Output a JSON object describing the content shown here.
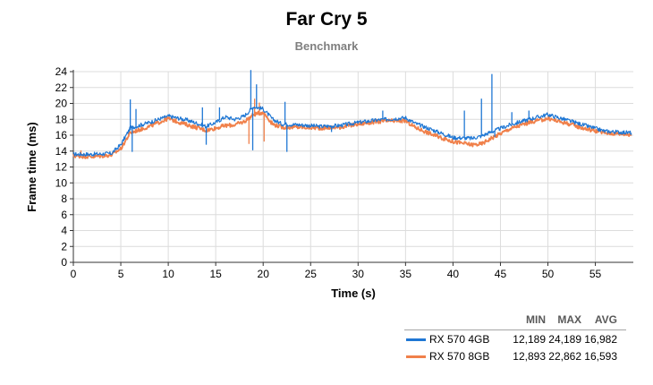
{
  "title": "Far Cry 5",
  "subtitle": "Benchmark",
  "chart_data": {
    "type": "line",
    "title": "Far Cry 5",
    "subtitle": "Benchmark",
    "xlabel": "Time (s)",
    "ylabel": "Frame time (ms)",
    "xlim": [
      0,
      59
    ],
    "ylim": [
      0,
      24
    ],
    "xticks": [
      0,
      5,
      10,
      15,
      20,
      25,
      30,
      35,
      40,
      45,
      50,
      55
    ],
    "yticks": [
      0,
      2,
      4,
      6,
      8,
      10,
      12,
      14,
      16,
      18,
      20,
      22,
      24
    ],
    "grid": true,
    "series": [
      {
        "name": "RX 570 4GB",
        "color": "#1f77d4",
        "x": [
          0,
          2,
          4,
          5,
          6,
          8,
          10,
          12,
          14,
          15,
          16,
          17,
          18,
          19,
          20,
          21,
          22,
          24,
          26,
          28,
          30,
          32,
          34,
          35,
          36,
          38,
          40,
          42,
          43,
          44,
          46,
          48,
          50,
          52,
          54,
          56,
          58.8
        ],
        "y": [
          13.6,
          13.6,
          13.7,
          14.8,
          16.9,
          17.6,
          18.4,
          17.9,
          17.1,
          17.6,
          18.3,
          18.0,
          18.4,
          19.6,
          19.3,
          18.0,
          17.4,
          17.3,
          17.1,
          17.2,
          17.6,
          17.9,
          18.1,
          18.2,
          17.5,
          16.6,
          15.7,
          15.6,
          15.9,
          16.4,
          17.3,
          18.0,
          18.6,
          17.9,
          17.2,
          16.5,
          16.3
        ],
        "spikes": [
          [
            6.0,
            20.5
          ],
          [
            6.2,
            13.9
          ],
          [
            6.6,
            19.3
          ],
          [
            13.6,
            19.5
          ],
          [
            14.0,
            14.8
          ],
          [
            15.4,
            19.5
          ],
          [
            18.7,
            24.2
          ],
          [
            18.9,
            14.1
          ],
          [
            19.3,
            22.4
          ],
          [
            22.3,
            20.2
          ],
          [
            22.5,
            13.9
          ],
          [
            27.2,
            16.4
          ],
          [
            32.6,
            19.1
          ],
          [
            41.2,
            19.1
          ],
          [
            43.0,
            20.6
          ],
          [
            44.1,
            23.7
          ],
          [
            44.4,
            15.8
          ],
          [
            46.2,
            18.9
          ],
          [
            48.0,
            19.1
          ]
        ],
        "min": "12,189",
        "max": "24,189",
        "avg": "16,982"
      },
      {
        "name": "RX 570 8GB",
        "color": "#f0804a",
        "x": [
          0,
          2,
          4,
          5,
          6,
          8,
          10,
          12,
          14,
          15,
          16,
          17,
          18,
          19,
          20,
          21,
          22,
          24,
          26,
          28,
          30,
          32,
          34,
          35,
          36,
          38,
          40,
          42,
          43,
          44,
          46,
          48,
          50,
          52,
          54,
          56,
          58.8
        ],
        "y": [
          13.4,
          13.3,
          13.5,
          14.3,
          16.3,
          17.1,
          18.1,
          17.3,
          16.6,
          16.9,
          17.2,
          17.3,
          17.7,
          18.6,
          18.9,
          17.4,
          17.0,
          17.0,
          16.9,
          17.0,
          17.4,
          17.7,
          17.8,
          17.8,
          17.0,
          16.0,
          15.2,
          14.8,
          14.9,
          15.6,
          16.8,
          17.6,
          18.1,
          17.5,
          16.8,
          16.3,
          16.1
        ],
        "spikes": [
          [
            0.8,
            14.1
          ],
          [
            18.5,
            14.9
          ],
          [
            19.1,
            20.6
          ],
          [
            19.6,
            20.1
          ],
          [
            20.1,
            15.2
          ]
        ],
        "min": "12,893",
        "max": "22,862",
        "avg": "16,593"
      }
    ]
  },
  "legend": {
    "headers": [
      "MIN",
      "MAX",
      "AVG"
    ],
    "rows": [
      {
        "name": "RX 570 4GB",
        "min": "12,189",
        "max": "24,189",
        "avg": "16,982",
        "color": "#1f77d4"
      },
      {
        "name": "RX 570 8GB",
        "min": "12,893",
        "max": "22,862",
        "avg": "16,593",
        "color": "#f0804a"
      }
    ]
  }
}
